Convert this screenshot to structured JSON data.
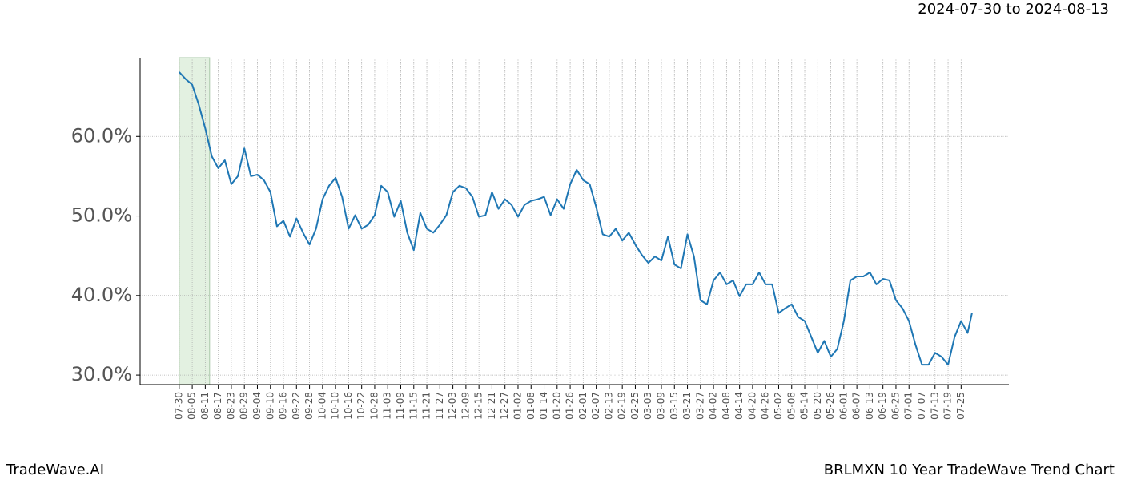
{
  "chart_data": {
    "type": "line",
    "title": "2024-07-30 to 2024-08-13",
    "footer_left": "TradeWave.AI",
    "footer_right": "BRLMXN 10 Year TradeWave Trend Chart",
    "highlight_x": [
      0,
      14
    ],
    "highlight_color": "#e3f1e1",
    "grid": true,
    "xlim": [
      -18,
      382
    ],
    "ylim": [
      28.8,
      69.9
    ],
    "yticks": [
      {
        "value": 30,
        "label": "30.0%"
      },
      {
        "value": 40,
        "label": "40.0%"
      },
      {
        "value": 50,
        "label": "50.0%"
      },
      {
        "value": 60,
        "label": "60.0%"
      }
    ],
    "xticks": [
      {
        "value": 0,
        "label": "07-30"
      },
      {
        "value": 6,
        "label": "08-05"
      },
      {
        "value": 12,
        "label": "08-11"
      },
      {
        "value": 18,
        "label": "08-17"
      },
      {
        "value": 24,
        "label": "08-23"
      },
      {
        "value": 30,
        "label": "08-29"
      },
      {
        "value": 36,
        "label": "09-04"
      },
      {
        "value": 42,
        "label": "09-10"
      },
      {
        "value": 48,
        "label": "09-16"
      },
      {
        "value": 54,
        "label": "09-22"
      },
      {
        "value": 60,
        "label": "09-28"
      },
      {
        "value": 66,
        "label": "10-04"
      },
      {
        "value": 72,
        "label": "10-10"
      },
      {
        "value": 78,
        "label": "10-16"
      },
      {
        "value": 84,
        "label": "10-22"
      },
      {
        "value": 90,
        "label": "10-28"
      },
      {
        "value": 96,
        "label": "11-03"
      },
      {
        "value": 102,
        "label": "11-09"
      },
      {
        "value": 108,
        "label": "11-15"
      },
      {
        "value": 114,
        "label": "11-21"
      },
      {
        "value": 120,
        "label": "11-27"
      },
      {
        "value": 126,
        "label": "12-03"
      },
      {
        "value": 132,
        "label": "12-09"
      },
      {
        "value": 138,
        "label": "12-15"
      },
      {
        "value": 144,
        "label": "12-21"
      },
      {
        "value": 150,
        "label": "12-27"
      },
      {
        "value": 156,
        "label": "01-02"
      },
      {
        "value": 162,
        "label": "01-08"
      },
      {
        "value": 168,
        "label": "01-14"
      },
      {
        "value": 174,
        "label": "01-20"
      },
      {
        "value": 180,
        "label": "01-26"
      },
      {
        "value": 186,
        "label": "02-01"
      },
      {
        "value": 192,
        "label": "02-07"
      },
      {
        "value": 198,
        "label": "02-13"
      },
      {
        "value": 204,
        "label": "02-19"
      },
      {
        "value": 210,
        "label": "02-25"
      },
      {
        "value": 216,
        "label": "03-03"
      },
      {
        "value": 222,
        "label": "03-09"
      },
      {
        "value": 228,
        "label": "03-15"
      },
      {
        "value": 234,
        "label": "03-21"
      },
      {
        "value": 240,
        "label": "03-27"
      },
      {
        "value": 246,
        "label": "04-02"
      },
      {
        "value": 252,
        "label": "04-08"
      },
      {
        "value": 258,
        "label": "04-14"
      },
      {
        "value": 264,
        "label": "04-20"
      },
      {
        "value": 270,
        "label": "04-26"
      },
      {
        "value": 276,
        "label": "05-02"
      },
      {
        "value": 282,
        "label": "05-08"
      },
      {
        "value": 288,
        "label": "05-14"
      },
      {
        "value": 294,
        "label": "05-20"
      },
      {
        "value": 300,
        "label": "05-26"
      },
      {
        "value": 306,
        "label": "06-01"
      },
      {
        "value": 312,
        "label": "06-07"
      },
      {
        "value": 318,
        "label": "06-13"
      },
      {
        "value": 324,
        "label": "06-19"
      },
      {
        "value": 330,
        "label": "06-25"
      },
      {
        "value": 336,
        "label": "07-01"
      },
      {
        "value": 342,
        "label": "07-07"
      },
      {
        "value": 348,
        "label": "07-13"
      },
      {
        "value": 354,
        "label": "07-19"
      },
      {
        "value": 360,
        "label": "07-25"
      }
    ],
    "x": [
      0,
      3,
      6,
      9,
      12,
      15,
      18,
      21,
      24,
      27,
      30,
      33,
      36,
      39,
      42,
      45,
      48,
      51,
      54,
      57,
      60,
      63,
      66,
      69,
      72,
      75,
      78,
      81,
      84,
      87,
      90,
      93,
      96,
      99,
      102,
      105,
      108,
      111,
      114,
      117,
      120,
      123,
      126,
      129,
      132,
      135,
      138,
      141,
      144,
      147,
      150,
      153,
      156,
      159,
      162,
      165,
      168,
      171,
      174,
      177,
      180,
      183,
      186,
      189,
      192,
      195,
      198,
      201,
      204,
      207,
      210,
      213,
      216,
      219,
      222,
      225,
      228,
      231,
      234,
      237,
      240,
      243,
      246,
      249,
      252,
      255,
      258,
      261,
      264,
      267,
      270,
      273,
      276,
      279,
      282,
      285,
      288,
      291,
      294,
      297,
      300,
      303,
      306,
      309,
      312,
      315,
      318,
      321,
      324,
      327,
      330,
      333,
      336,
      339,
      342,
      345,
      348,
      351,
      354,
      357,
      360,
      363,
      365
    ],
    "series": [
      {
        "color": "#1f77b4",
        "values": [
          68.1,
          67.2,
          66.5,
          64.0,
          61.0,
          57.5,
          56.0,
          57.0,
          54.0,
          55.0,
          58.5,
          55.0,
          55.2,
          54.5,
          53.0,
          48.7,
          49.4,
          47.4,
          49.7,
          47.9,
          46.4,
          48.4,
          52.1,
          53.8,
          54.8,
          52.4,
          48.4,
          50.1,
          48.4,
          48.9,
          50.1,
          53.8,
          53.0,
          49.9,
          51.9,
          47.9,
          45.7,
          50.4,
          48.4,
          47.9,
          48.9,
          50.1,
          53.0,
          53.8,
          53.5,
          52.4,
          49.9,
          50.1,
          53.0,
          50.9,
          52.1,
          51.4,
          49.9,
          51.4,
          51.9,
          52.1,
          52.4,
          50.1,
          52.1,
          50.9,
          54.0,
          55.8,
          54.5,
          54.0,
          51.1,
          47.7,
          47.4,
          48.4,
          46.9,
          47.9,
          46.4,
          45.1,
          44.1,
          44.9,
          44.4,
          47.4,
          43.9,
          43.4,
          47.7,
          44.9,
          39.4,
          38.9,
          41.9,
          42.9,
          41.4,
          41.9,
          39.9,
          41.4,
          41.4,
          42.9,
          41.4,
          41.4,
          37.8,
          38.4,
          38.9,
          37.3,
          36.8,
          34.8,
          32.8,
          34.3,
          32.3,
          33.3,
          36.8,
          41.9,
          42.4,
          42.4,
          42.9,
          41.4,
          42.1,
          41.9,
          39.4,
          38.4,
          36.8,
          33.8,
          31.3,
          31.3,
          32.8,
          32.3,
          31.3,
          34.8,
          36.8,
          35.3,
          37.8
        ]
      }
    ]
  }
}
